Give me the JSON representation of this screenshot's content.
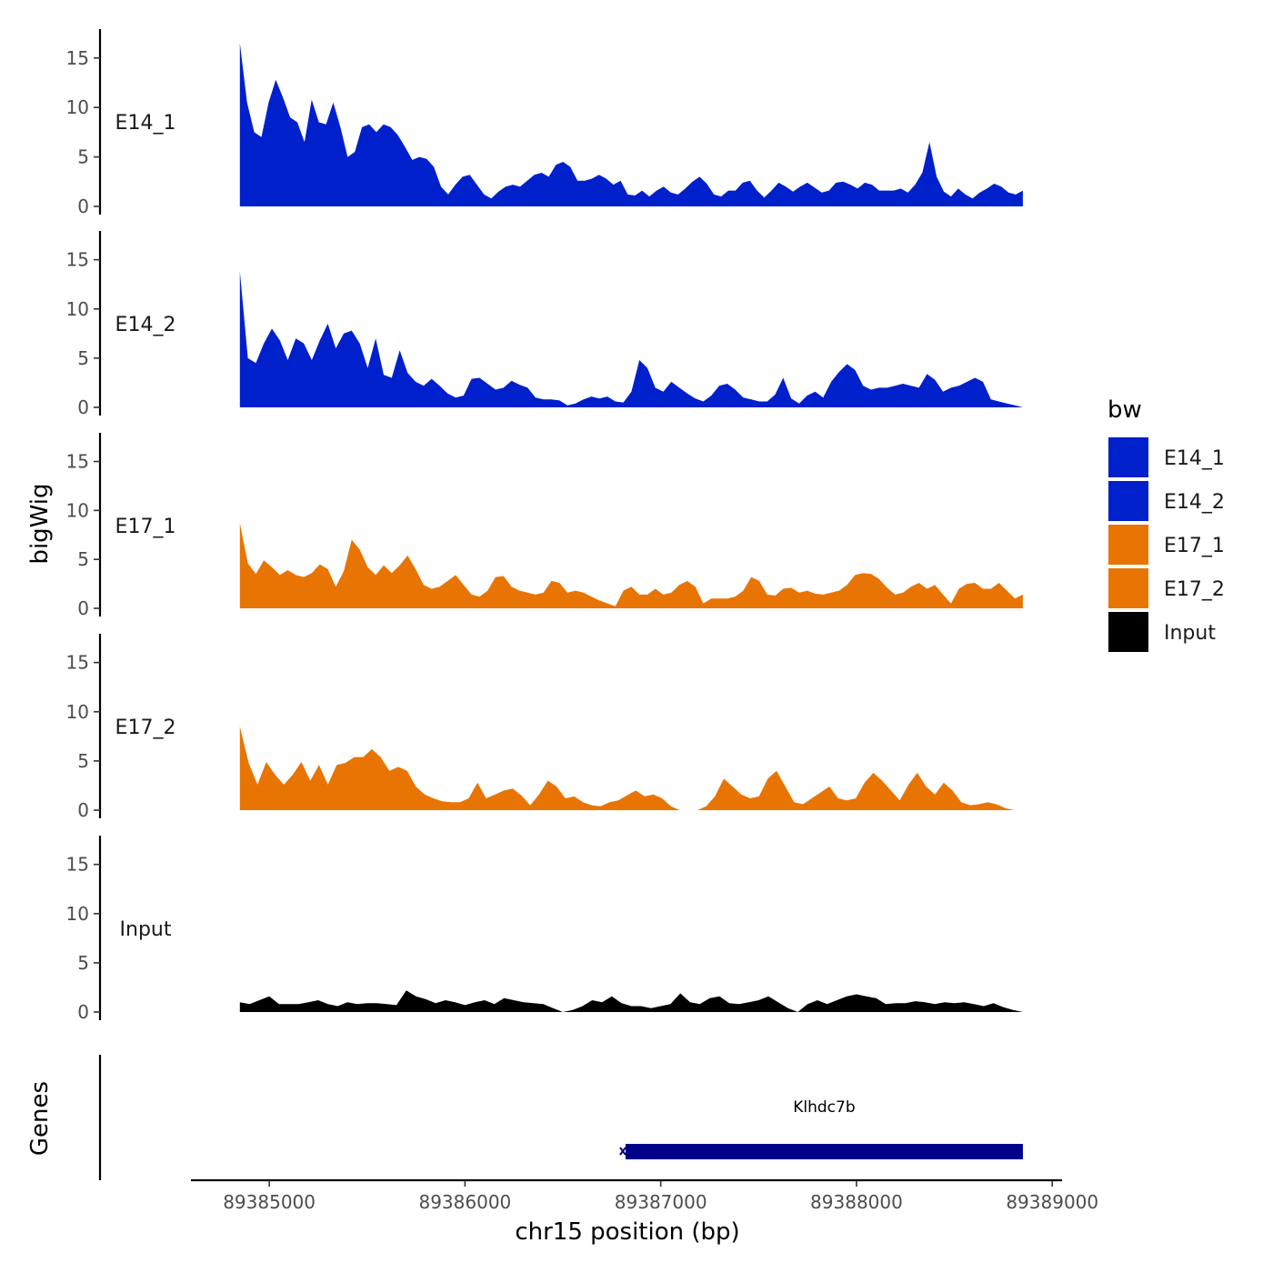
{
  "chart_data": {
    "type": "area",
    "chromosome": "chr15",
    "x_range": [
      89384850,
      89388850
    ],
    "xlim": [
      89384600,
      89389050
    ],
    "ylim": [
      0,
      17
    ],
    "y_ticks": [
      0,
      5,
      10,
      15
    ],
    "x_ticks": [
      89385000,
      89386000,
      89387000,
      89388000,
      89389000
    ],
    "x_tick_labels": [
      "89385000",
      "89386000",
      "89387000",
      "89388000",
      "89389000"
    ],
    "xlabel": "chr15 position (bp)",
    "ylabel": "bigWig",
    "genes_label": "Genes",
    "legend": {
      "title": "bw",
      "entries": [
        {
          "name": "E14_1",
          "color": "#0020CC"
        },
        {
          "name": "E14_2",
          "color": "#0020CC"
        },
        {
          "name": "E17_1",
          "color": "#E87503"
        },
        {
          "name": "E17_2",
          "color": "#E87503"
        },
        {
          "name": "Input",
          "color": "#000000"
        }
      ]
    },
    "series": [
      {
        "name": "E14_1",
        "color": "#0020CC",
        "values": [
          16.5,
          10.5,
          7.5,
          7.0,
          10.5,
          12.8,
          11.0,
          9.0,
          8.5,
          6.5,
          10.8,
          8.5,
          8.3,
          10.5,
          8.0,
          5.0,
          5.5,
          8.0,
          8.3,
          7.5,
          8.3,
          8.0,
          7.2,
          6.0,
          4.7,
          5.0,
          4.8,
          4.0,
          2.0,
          1.2,
          2.2,
          3.0,
          3.2,
          2.2,
          1.2,
          0.8,
          1.5,
          2.0,
          2.2,
          2.0,
          2.6,
          3.2,
          3.4,
          3.0,
          4.2,
          4.5,
          4.0,
          2.6,
          2.6,
          2.8,
          3.2,
          2.8,
          2.2,
          2.6,
          1.2,
          1.1,
          1.6,
          1.0,
          1.6,
          2.0,
          1.4,
          1.2,
          1.8,
          2.5,
          3.0,
          2.3,
          1.2,
          1.0,
          1.6,
          1.6,
          2.4,
          2.6,
          1.6,
          0.9,
          1.6,
          2.4,
          2.0,
          1.5,
          2.0,
          2.4,
          1.9,
          1.4,
          1.6,
          2.4,
          2.5,
          2.2,
          1.8,
          2.4,
          2.2,
          1.6,
          1.6,
          1.6,
          1.8,
          1.4,
          2.2,
          3.4,
          6.5,
          3.0,
          1.5,
          1.0,
          1.8,
          1.2,
          0.8,
          1.4,
          1.8,
          2.3,
          2.0,
          1.4,
          1.2,
          1.6
        ]
      },
      {
        "name": "E14_2",
        "color": "#0020CC",
        "values": [
          13.8,
          5.0,
          4.5,
          6.5,
          8.0,
          6.8,
          4.8,
          7.0,
          6.5,
          4.8,
          6.8,
          8.5,
          6.0,
          7.5,
          7.8,
          6.5,
          4.0,
          7.0,
          3.3,
          3.0,
          5.8,
          3.5,
          2.6,
          2.2,
          2.9,
          2.2,
          1.4,
          1.0,
          1.2,
          2.9,
          3.0,
          2.4,
          1.8,
          2.0,
          2.7,
          2.3,
          2.0,
          1.0,
          0.8,
          0.8,
          0.7,
          0.2,
          0.4,
          0.8,
          1.1,
          0.9,
          1.1,
          0.6,
          0.5,
          1.6,
          4.8,
          4.0,
          2.0,
          1.6,
          2.6,
          2.0,
          1.4,
          0.9,
          0.6,
          1.2,
          2.2,
          2.4,
          1.8,
          1.0,
          0.8,
          0.6,
          0.6,
          1.3,
          3.0,
          0.9,
          0.4,
          1.2,
          1.6,
          1.0,
          2.6,
          3.6,
          4.4,
          3.8,
          2.2,
          1.8,
          2.0,
          2.0,
          2.2,
          2.4,
          2.2,
          2.0,
          3.4,
          2.8,
          1.6,
          2.0,
          2.2,
          2.6,
          3.0,
          2.6,
          0.8,
          0.6,
          0.4,
          0.2,
          0.0
        ]
      },
      {
        "name": "E17_1",
        "color": "#E87503",
        "values": [
          8.7,
          4.6,
          3.5,
          4.9,
          4.2,
          3.4,
          3.9,
          3.4,
          3.2,
          3.6,
          4.5,
          4.0,
          2.2,
          3.8,
          7.0,
          6.0,
          4.2,
          3.4,
          4.4,
          3.6,
          4.4,
          5.4,
          4.0,
          2.4,
          2.0,
          2.2,
          2.8,
          3.4,
          2.4,
          1.4,
          1.2,
          1.8,
          3.2,
          3.3,
          2.2,
          1.8,
          1.6,
          1.4,
          1.6,
          2.8,
          2.6,
          1.6,
          1.8,
          1.6,
          1.2,
          0.8,
          0.5,
          0.2,
          1.8,
          2.2,
          1.4,
          1.4,
          2.0,
          1.4,
          1.6,
          2.4,
          2.8,
          2.2,
          0.5,
          1.0,
          1.0,
          1.0,
          1.2,
          1.8,
          3.2,
          2.8,
          1.4,
          1.3,
          2.0,
          2.1,
          1.6,
          1.8,
          1.5,
          1.4,
          1.6,
          1.8,
          2.4,
          3.4,
          3.6,
          3.5,
          3.0,
          2.1,
          1.4,
          1.6,
          2.2,
          2.6,
          2.0,
          2.4,
          1.4,
          0.5,
          2.0,
          2.5,
          2.6,
          2.0,
          2.0,
          2.6,
          1.8,
          1.0,
          1.4
        ]
      },
      {
        "name": "E17_2",
        "color": "#E87503",
        "values": [
          8.5,
          4.8,
          2.6,
          4.9,
          3.6,
          2.6,
          3.6,
          4.9,
          3.0,
          4.6,
          2.6,
          4.6,
          4.8,
          5.4,
          5.4,
          6.2,
          5.4,
          4.0,
          4.4,
          4.0,
          2.4,
          1.6,
          1.2,
          0.9,
          0.8,
          0.8,
          1.2,
          2.8,
          1.2,
          1.6,
          2.0,
          2.2,
          1.5,
          0.5,
          1.6,
          3.0,
          2.4,
          1.2,
          1.4,
          0.8,
          0.5,
          0.4,
          0.8,
          1.0,
          1.5,
          2.0,
          1.4,
          1.6,
          1.2,
          0.4,
          0.0,
          0.0,
          0.0,
          0.4,
          1.4,
          3.2,
          2.4,
          1.6,
          1.2,
          1.4,
          3.2,
          4.0,
          2.4,
          0.8,
          0.6,
          1.2,
          1.8,
          2.4,
          1.2,
          1.0,
          1.2,
          2.8,
          3.8,
          3.0,
          2.0,
          1.0,
          2.6,
          3.8,
          2.4,
          1.6,
          2.8,
          2.0,
          0.8,
          0.5,
          0.6,
          0.8,
          0.6,
          0.2,
          0.0,
          0.0
        ]
      },
      {
        "name": "Input",
        "color": "#000000",
        "values": [
          1.0,
          0.8,
          1.2,
          1.6,
          0.8,
          0.8,
          0.8,
          1.0,
          1.2,
          0.8,
          0.6,
          1.0,
          0.8,
          0.9,
          0.9,
          0.8,
          0.7,
          2.2,
          1.6,
          1.3,
          0.9,
          1.2,
          1.0,
          0.7,
          1.0,
          1.2,
          0.8,
          1.4,
          1.2,
          1.0,
          0.9,
          0.8,
          0.4,
          0.0,
          0.2,
          0.6,
          1.2,
          1.0,
          1.6,
          0.9,
          0.6,
          0.6,
          0.4,
          0.6,
          0.8,
          1.9,
          1.0,
          0.8,
          1.4,
          1.6,
          0.9,
          0.8,
          1.0,
          1.2,
          1.6,
          1.0,
          0.4,
          0.0,
          0.8,
          1.2,
          0.8,
          1.2,
          1.6,
          1.8,
          1.6,
          1.4,
          0.8,
          0.9,
          0.9,
          1.1,
          1.0,
          0.8,
          1.0,
          0.9,
          1.0,
          0.8,
          0.6,
          0.9,
          0.5,
          0.2,
          0.0
        ]
      }
    ],
    "genes": [
      {
        "name": "Klhdc7b",
        "start": 89386820,
        "end": 89388850,
        "color": "#00008B"
      }
    ]
  }
}
